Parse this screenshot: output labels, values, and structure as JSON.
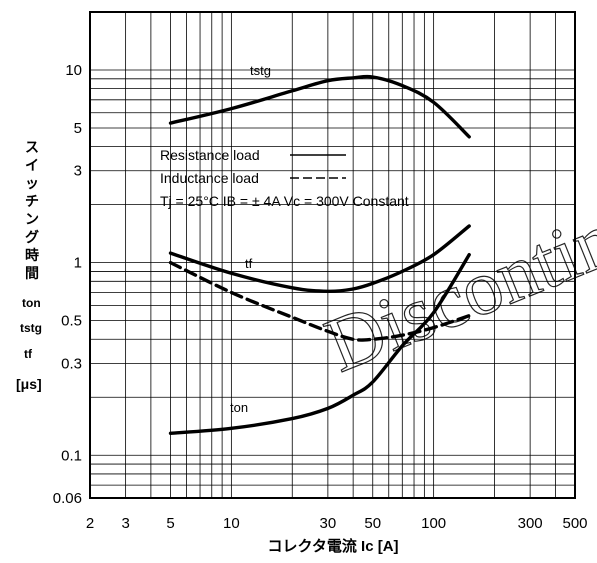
{
  "chart_data": {
    "type": "line",
    "x_scale": "log",
    "y_scale": "log",
    "xlim": [
      2,
      500
    ],
    "ylim": [
      0.06,
      20
    ],
    "grid": true,
    "xlabel": "コレクタ電流  Ic [A]",
    "ylabel_chars": [
      "ス",
      "イ",
      "ッ",
      "チ",
      "ン",
      "グ",
      "時",
      "間"
    ],
    "ylabel_symbols": [
      "ton",
      "tstg",
      "tf",
      "[μs]"
    ],
    "x_ticks": [
      2,
      3,
      5,
      10,
      30,
      50,
      100,
      300,
      500
    ],
    "x_tick_labels": [
      "2",
      "3",
      "5",
      "10",
      "30",
      "50",
      "100",
      "300",
      "500"
    ],
    "y_ticks": [
      0.06,
      0.1,
      0.3,
      0.5,
      1,
      3,
      5,
      10
    ],
    "y_tick_labels": [
      "0.06",
      "0.1",
      "0.3",
      "0.5",
      "1",
      "3",
      "5",
      "10"
    ],
    "legend": {
      "placement": "center",
      "lines": [
        "Resistance load",
        "Inductance load",
        "Tj = 25°C  IB = ± 4A  Vc = 300V  Constant"
      ]
    },
    "series": [
      {
        "name": "tstg",
        "style": "solid",
        "x": [
          5,
          10,
          20,
          30,
          40,
          50,
          70,
          100,
          150
        ],
        "y": [
          5.3,
          6.3,
          7.8,
          8.8,
          9.1,
          9.2,
          8.3,
          6.8,
          4.5
        ]
      },
      {
        "name": "tf",
        "style": "solid",
        "x": [
          5,
          10,
          20,
          30,
          40,
          50,
          70,
          100,
          150
        ],
        "y": [
          1.12,
          0.88,
          0.74,
          0.71,
          0.73,
          0.78,
          0.9,
          1.1,
          1.55
        ]
      },
      {
        "name": "tf",
        "style": "dashed",
        "x": [
          5,
          10,
          20,
          30,
          40,
          50,
          70,
          100,
          150
        ],
        "y": [
          1.0,
          0.7,
          0.52,
          0.44,
          0.4,
          0.4,
          0.42,
          0.46,
          0.53
        ]
      },
      {
        "name": "ton",
        "style": "solid",
        "x": [
          5,
          10,
          20,
          30,
          40,
          50,
          70,
          100,
          150
        ],
        "y": [
          0.13,
          0.138,
          0.155,
          0.175,
          0.205,
          0.24,
          0.37,
          0.55,
          1.1
        ]
      }
    ],
    "curve_labels": [
      "tstg",
      "tf",
      "ton"
    ],
    "watermark": [
      "Discontinued"
    ]
  }
}
